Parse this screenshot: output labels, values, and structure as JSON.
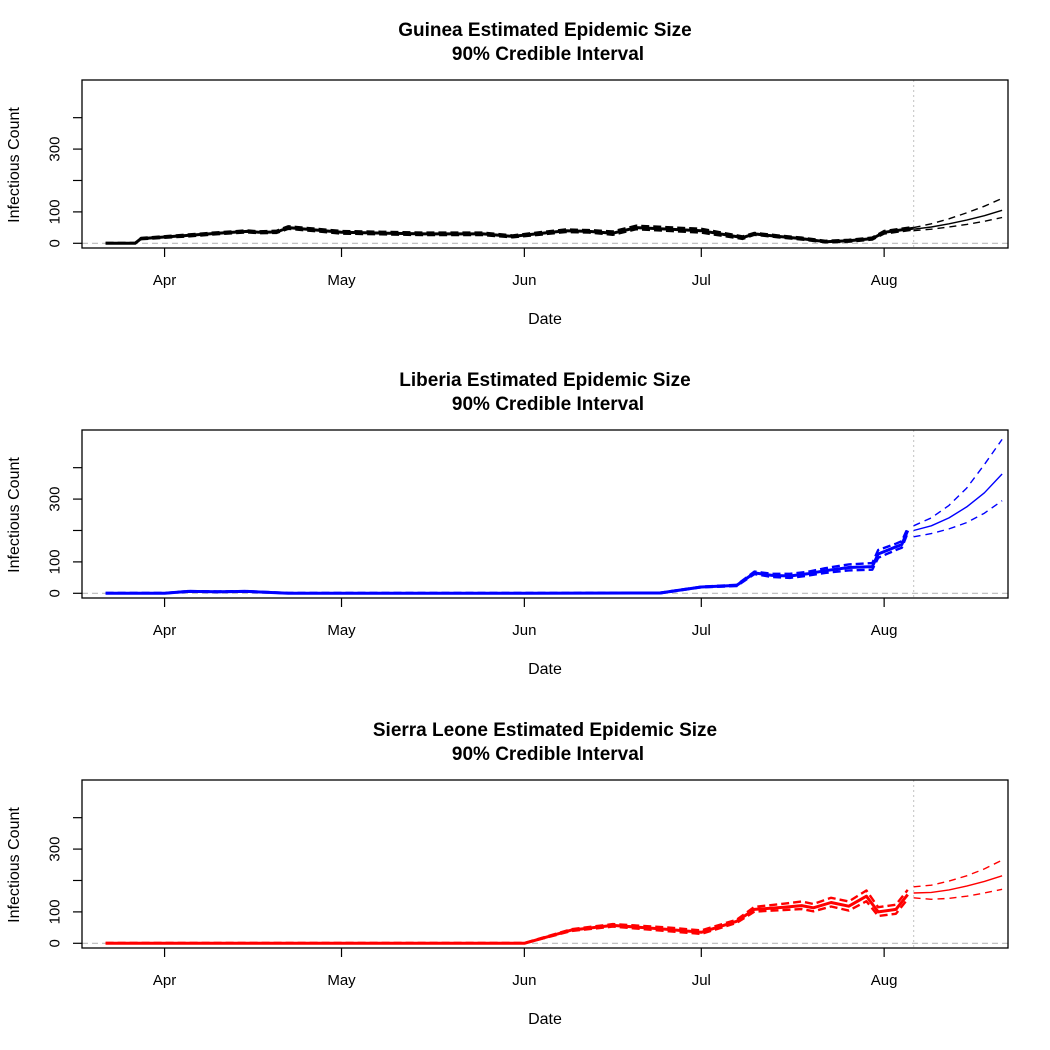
{
  "chart_data": [
    {
      "type": "line",
      "title": "Guinea Estimated Epidemic Size",
      "subtitle": "90% Credible Interval",
      "xlabel": "Date",
      "ylabel": "Infectious Count",
      "x_ticks": [
        "Apr",
        "May",
        "Jun",
        "Jul",
        "Aug"
      ],
      "x_tick_dates": [
        "2014-04-01",
        "2014-05-01",
        "2014-06-01",
        "2014-07-01",
        "2014-08-01"
      ],
      "y_ticks": [
        0,
        100,
        300
      ],
      "y_minor_ticks": [
        200,
        400
      ],
      "ylim": [
        -15,
        520
      ],
      "xlim": [
        "2014-03-18",
        "2014-08-22"
      ],
      "color": "#000000",
      "forecast_start": "2014-08-06",
      "reference_line_y": 0,
      "series": [
        {
          "role": "median",
          "x": [
            "2014-03-22",
            "2014-03-25",
            "2014-03-27",
            "2014-03-28",
            "2014-04-05",
            "2014-04-10",
            "2014-04-15",
            "2014-04-17",
            "2014-04-20",
            "2014-04-22",
            "2014-05-01",
            "2014-05-15",
            "2014-05-25",
            "2014-05-30",
            "2014-06-04",
            "2014-06-08",
            "2014-06-12",
            "2014-06-16",
            "2014-06-20",
            "2014-07-01",
            "2014-07-08",
            "2014-07-10",
            "2014-07-14",
            "2014-07-18",
            "2014-07-22",
            "2014-07-26",
            "2014-07-30",
            "2014-08-01",
            "2014-08-06"
          ],
          "y": [
            0,
            0,
            0,
            15,
            25,
            32,
            38,
            35,
            36,
            50,
            35,
            30,
            30,
            22,
            32,
            40,
            38,
            32,
            50,
            40,
            18,
            30,
            22,
            15,
            5,
            8,
            15,
            35,
            48
          ]
        },
        {
          "role": "upper_90",
          "x": [
            "2014-03-22",
            "2014-03-25",
            "2014-03-27",
            "2014-03-28",
            "2014-04-05",
            "2014-04-10",
            "2014-04-15",
            "2014-04-17",
            "2014-04-20",
            "2014-04-22",
            "2014-05-01",
            "2014-05-15",
            "2014-05-25",
            "2014-05-30",
            "2014-06-04",
            "2014-06-08",
            "2014-06-12",
            "2014-06-16",
            "2014-06-20",
            "2014-07-01",
            "2014-07-08",
            "2014-07-10",
            "2014-07-14",
            "2014-07-18",
            "2014-07-22",
            "2014-07-26",
            "2014-07-30",
            "2014-08-01",
            "2014-08-06"
          ],
          "y": [
            1,
            1,
            1,
            17,
            28,
            35,
            41,
            38,
            40,
            54,
            39,
            34,
            34,
            25,
            36,
            44,
            42,
            38,
            56,
            46,
            22,
            33,
            25,
            18,
            8,
            11,
            18,
            39,
            52
          ]
        },
        {
          "role": "lower_90",
          "x": [
            "2014-03-22",
            "2014-03-25",
            "2014-03-27",
            "2014-03-28",
            "2014-04-05",
            "2014-04-10",
            "2014-04-15",
            "2014-04-17",
            "2014-04-20",
            "2014-04-22",
            "2014-05-01",
            "2014-05-15",
            "2014-05-25",
            "2014-05-30",
            "2014-06-04",
            "2014-06-08",
            "2014-06-12",
            "2014-06-16",
            "2014-06-20",
            "2014-07-01",
            "2014-07-08",
            "2014-07-10",
            "2014-07-14",
            "2014-07-18",
            "2014-07-22",
            "2014-07-26",
            "2014-07-30",
            "2014-08-01",
            "2014-08-06"
          ],
          "y": [
            0,
            0,
            0,
            13,
            22,
            29,
            35,
            32,
            33,
            46,
            31,
            26,
            26,
            19,
            28,
            36,
            34,
            27,
            45,
            34,
            14,
            27,
            19,
            12,
            3,
            5,
            12,
            31,
            44
          ]
        },
        {
          "role": "forecast_median",
          "x": [
            "2014-08-06",
            "2014-08-09",
            "2014-08-12",
            "2014-08-15",
            "2014-08-18",
            "2014-08-21"
          ],
          "y": [
            45,
            52,
            62,
            74,
            88,
            105
          ]
        },
        {
          "role": "forecast_upper_90",
          "x": [
            "2014-08-06",
            "2014-08-09",
            "2014-08-12",
            "2014-08-15",
            "2014-08-18",
            "2014-08-21"
          ],
          "y": [
            50,
            62,
            78,
            97,
            118,
            143
          ]
        },
        {
          "role": "forecast_lower_90",
          "x": [
            "2014-08-06",
            "2014-08-09",
            "2014-08-12",
            "2014-08-15",
            "2014-08-18",
            "2014-08-21"
          ],
          "y": [
            40,
            45,
            52,
            60,
            70,
            82
          ]
        }
      ]
    },
    {
      "type": "line",
      "title": "Liberia Estimated Epidemic Size",
      "subtitle": "90% Credible Interval",
      "xlabel": "Date",
      "ylabel": "Infectious Count",
      "x_ticks": [
        "Apr",
        "May",
        "Jun",
        "Jul",
        "Aug"
      ],
      "x_tick_dates": [
        "2014-04-01",
        "2014-05-01",
        "2014-06-01",
        "2014-07-01",
        "2014-08-01"
      ],
      "y_ticks": [
        0,
        100,
        300
      ],
      "y_minor_ticks": [
        200,
        400
      ],
      "ylim": [
        -15,
        520
      ],
      "xlim": [
        "2014-03-18",
        "2014-08-22"
      ],
      "color": "#0000ff",
      "forecast_start": "2014-08-06",
      "reference_line_y": 0,
      "series": [
        {
          "role": "median",
          "x": [
            "2014-03-22",
            "2014-04-01",
            "2014-04-05",
            "2014-04-10",
            "2014-04-15",
            "2014-04-22",
            "2014-05-01",
            "2014-06-01",
            "2014-06-24",
            "2014-07-01",
            "2014-07-07",
            "2014-07-10",
            "2014-07-13",
            "2014-07-16",
            "2014-07-19",
            "2014-07-22",
            "2014-07-26",
            "2014-07-30",
            "2014-07-31",
            "2014-08-03",
            "2014-08-04",
            "2014-08-05"
          ],
          "y": [
            0,
            0,
            6,
            5,
            6,
            0,
            0,
            0,
            1,
            20,
            25,
            65,
            57,
            55,
            62,
            72,
            82,
            85,
            125,
            148,
            155,
            200
          ]
        },
        {
          "role": "upper_90",
          "x": [
            "2014-03-22",
            "2014-04-01",
            "2014-04-05",
            "2014-04-10",
            "2014-04-15",
            "2014-04-22",
            "2014-05-01",
            "2014-06-01",
            "2014-06-24",
            "2014-07-01",
            "2014-07-07",
            "2014-07-10",
            "2014-07-13",
            "2014-07-16",
            "2014-07-19",
            "2014-07-22",
            "2014-07-26",
            "2014-07-30",
            "2014-07-31",
            "2014-08-03",
            "2014-08-04",
            "2014-08-05"
          ],
          "y": [
            1,
            1,
            7,
            6,
            7,
            1,
            1,
            1,
            2,
            21,
            27,
            69,
            62,
            62,
            68,
            80,
            92,
            96,
            138,
            158,
            166,
            208
          ]
        },
        {
          "role": "lower_90",
          "x": [
            "2014-03-22",
            "2014-04-01",
            "2014-04-05",
            "2014-04-10",
            "2014-04-15",
            "2014-04-22",
            "2014-05-01",
            "2014-06-01",
            "2014-06-24",
            "2014-07-01",
            "2014-07-07",
            "2014-07-10",
            "2014-07-13",
            "2014-07-16",
            "2014-07-19",
            "2014-07-22",
            "2014-07-26",
            "2014-07-30",
            "2014-07-31",
            "2014-08-03",
            "2014-08-04",
            "2014-08-05"
          ],
          "y": [
            0,
            0,
            5,
            4,
            5,
            0,
            0,
            0,
            0,
            19,
            23,
            61,
            52,
            49,
            56,
            65,
            73,
            75,
            113,
            138,
            145,
            192
          ]
        },
        {
          "role": "forecast_median",
          "x": [
            "2014-08-06",
            "2014-08-09",
            "2014-08-12",
            "2014-08-15",
            "2014-08-18",
            "2014-08-21"
          ],
          "y": [
            200,
            215,
            240,
            275,
            320,
            380
          ]
        },
        {
          "role": "forecast_upper_90",
          "x": [
            "2014-08-06",
            "2014-08-09",
            "2014-08-12",
            "2014-08-15",
            "2014-08-18",
            "2014-08-21"
          ],
          "y": [
            215,
            240,
            280,
            335,
            410,
            490
          ]
        },
        {
          "role": "forecast_lower_90",
          "x": [
            "2014-08-06",
            "2014-08-09",
            "2014-08-12",
            "2014-08-15",
            "2014-08-18",
            "2014-08-21"
          ],
          "y": [
            180,
            190,
            205,
            225,
            255,
            295
          ]
        }
      ]
    },
    {
      "type": "line",
      "title": "Sierra Leone Estimated Epidemic Size",
      "subtitle": "90% Credible Interval",
      "xlabel": "Date",
      "ylabel": "Infectious Count",
      "x_ticks": [
        "Apr",
        "May",
        "Jun",
        "Jul",
        "Aug"
      ],
      "x_tick_dates": [
        "2014-04-01",
        "2014-05-01",
        "2014-06-01",
        "2014-07-01",
        "2014-08-01"
      ],
      "y_ticks": [
        0,
        100,
        300
      ],
      "y_minor_ticks": [
        200,
        400
      ],
      "ylim": [
        -15,
        520
      ],
      "xlim": [
        "2014-03-18",
        "2014-08-22"
      ],
      "color": "#ff0000",
      "forecast_start": "2014-08-06",
      "reference_line_y": 0,
      "series": [
        {
          "role": "median",
          "x": [
            "2014-03-22",
            "2014-06-01",
            "2014-06-09",
            "2014-06-16",
            "2014-06-25",
            "2014-07-01",
            "2014-07-07",
            "2014-07-10",
            "2014-07-15",
            "2014-07-18",
            "2014-07-20",
            "2014-07-23",
            "2014-07-26",
            "2014-07-29",
            "2014-07-31",
            "2014-08-03",
            "2014-08-05"
          ],
          "y": [
            0,
            0,
            42,
            57,
            45,
            35,
            70,
            108,
            115,
            120,
            113,
            130,
            118,
            150,
            100,
            108,
            155
          ]
        },
        {
          "role": "upper_90",
          "x": [
            "2014-03-22",
            "2014-06-01",
            "2014-06-09",
            "2014-06-16",
            "2014-06-25",
            "2014-07-01",
            "2014-07-07",
            "2014-07-10",
            "2014-07-15",
            "2014-07-18",
            "2014-07-20",
            "2014-07-23",
            "2014-07-26",
            "2014-07-29",
            "2014-07-31",
            "2014-08-03",
            "2014-08-05"
          ],
          "y": [
            1,
            1,
            45,
            61,
            51,
            41,
            75,
            116,
            126,
            133,
            125,
            145,
            133,
            168,
            115,
            123,
            170
          ]
        },
        {
          "role": "lower_90",
          "x": [
            "2014-03-22",
            "2014-06-01",
            "2014-06-09",
            "2014-06-16",
            "2014-06-25",
            "2014-07-01",
            "2014-07-07",
            "2014-07-10",
            "2014-07-15",
            "2014-07-18",
            "2014-07-20",
            "2014-07-23",
            "2014-07-26",
            "2014-07-29",
            "2014-07-31",
            "2014-08-03",
            "2014-08-05"
          ],
          "y": [
            0,
            0,
            39,
            53,
            39,
            30,
            65,
            101,
            106,
            109,
            102,
            117,
            104,
            134,
            87,
            94,
            141
          ]
        },
        {
          "role": "forecast_median",
          "x": [
            "2014-08-06",
            "2014-08-09",
            "2014-08-12",
            "2014-08-15",
            "2014-08-18",
            "2014-08-21"
          ],
          "y": [
            160,
            162,
            170,
            182,
            197,
            215
          ]
        },
        {
          "role": "forecast_upper_90",
          "x": [
            "2014-08-06",
            "2014-08-09",
            "2014-08-12",
            "2014-08-15",
            "2014-08-18",
            "2014-08-21"
          ],
          "y": [
            180,
            185,
            198,
            215,
            237,
            265
          ]
        },
        {
          "role": "forecast_lower_90",
          "x": [
            "2014-08-06",
            "2014-08-09",
            "2014-08-12",
            "2014-08-15",
            "2014-08-18",
            "2014-08-21"
          ],
          "y": [
            145,
            140,
            143,
            150,
            160,
            172
          ]
        }
      ]
    }
  ]
}
